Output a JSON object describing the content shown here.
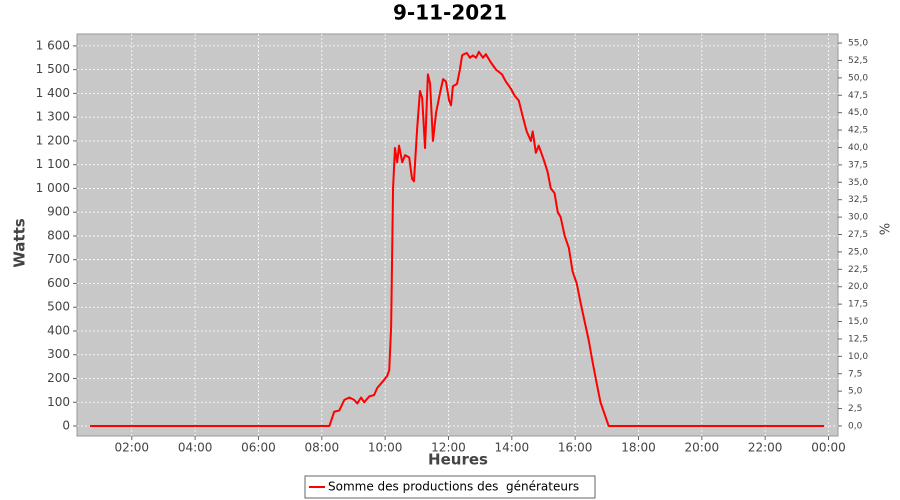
{
  "chart_data": {
    "type": "line",
    "title": "9-11-2021",
    "xlabel": "Heures",
    "ylabel": "Watts",
    "y2label": "%",
    "grid": true,
    "legend": "bottom",
    "xlim": [
      0.27,
      24.3
    ],
    "xticks": [
      {
        "value": 2,
        "label": "02:00"
      },
      {
        "value": 4,
        "label": "04:00"
      },
      {
        "value": 6,
        "label": "06:00"
      },
      {
        "value": 8,
        "label": "08:00"
      },
      {
        "value": 10,
        "label": "10:00"
      },
      {
        "value": 12,
        "label": "12:00"
      },
      {
        "value": 14,
        "label": "14:00"
      },
      {
        "value": 16,
        "label": "16:00"
      },
      {
        "value": 18,
        "label": "18:00"
      },
      {
        "value": 20,
        "label": "20:00"
      },
      {
        "value": 22,
        "label": "22:00"
      },
      {
        "value": 24,
        "label": "00:00"
      }
    ],
    "ylim": [
      -42,
      1650
    ],
    "yticks": [
      0,
      100,
      200,
      300,
      400,
      500,
      600,
      700,
      800,
      900,
      {
        "value": 1000,
        "label": "1 000"
      },
      {
        "value": 1100,
        "label": "1 100"
      },
      {
        "value": 1200,
        "label": "1 200"
      },
      {
        "value": 1300,
        "label": "1 300"
      },
      {
        "value": 1400,
        "label": "1 400"
      },
      {
        "value": 1500,
        "label": "1 500"
      },
      {
        "value": 1600,
        "label": "1 600"
      }
    ],
    "y2lim": [
      -1.44,
      56.3
    ],
    "y2ticks": [
      {
        "value": 0,
        "label": "0,0"
      },
      {
        "value": 2.5,
        "label": "2,5"
      },
      {
        "value": 5,
        "label": "5,0"
      },
      {
        "value": 7.5,
        "label": "7,5"
      },
      {
        "value": 10,
        "label": "10,0"
      },
      {
        "value": 12.5,
        "label": "12,5"
      },
      {
        "value": 15,
        "label": "15,0"
      },
      {
        "value": 17.5,
        "label": "17,5"
      },
      {
        "value": 20,
        "label": "20,0"
      },
      {
        "value": 22.5,
        "label": "22,5"
      },
      {
        "value": 25,
        "label": "25,0"
      },
      {
        "value": 27.5,
        "label": "27,5"
      },
      {
        "value": 30,
        "label": "30,0"
      },
      {
        "value": 32.5,
        "label": "32,5"
      },
      {
        "value": 35,
        "label": "35,0"
      },
      {
        "value": 37.5,
        "label": "37,5"
      },
      {
        "value": 40,
        "label": "40,0"
      },
      {
        "value": 42.5,
        "label": "42,5"
      },
      {
        "value": 45,
        "label": "45,0"
      },
      {
        "value": 47.5,
        "label": "47,5"
      },
      {
        "value": 50,
        "label": "50,0"
      },
      {
        "value": 52.5,
        "label": "52,5"
      },
      {
        "value": 55,
        "label": "55,0"
      }
    ],
    "x": [
      0.68,
      8.24,
      8.39,
      8.55,
      8.71,
      8.87,
      9.02,
      9.12,
      9.24,
      9.34,
      9.5,
      9.65,
      9.75,
      9.91,
      10.06,
      10.13,
      10.19,
      10.25,
      10.31,
      10.38,
      10.44,
      10.54,
      10.63,
      10.76,
      10.85,
      10.91,
      11.01,
      11.1,
      11.17,
      11.26,
      11.35,
      11.42,
      11.51,
      11.61,
      11.73,
      11.83,
      11.92,
      12.02,
      12.08,
      12.14,
      12.27,
      12.36,
      12.43,
      12.49,
      12.58,
      12.68,
      12.77,
      12.87,
      12.96,
      13.09,
      13.18,
      13.34,
      13.5,
      13.69,
      13.81,
      13.97,
      14.09,
      14.22,
      14.35,
      14.47,
      14.6,
      14.66,
      14.76,
      14.85,
      15.01,
      15.13,
      15.23,
      15.35,
      15.45,
      15.54,
      15.67,
      15.8,
      15.92,
      16.05,
      16.17,
      16.3,
      16.43,
      16.55,
      16.68,
      16.8,
      16.93,
      17.06,
      23.86
    ],
    "series": [
      {
        "name": "Somme des productions des  générateurs",
        "color": "#ff0000",
        "values": [
          0,
          0,
          60,
          65,
          110,
          120,
          110,
          95,
          120,
          100,
          125,
          130,
          160,
          185,
          210,
          235,
          420,
          1000,
          1170,
          1110,
          1180,
          1110,
          1140,
          1130,
          1040,
          1030,
          1250,
          1410,
          1380,
          1170,
          1480,
          1440,
          1200,
          1320,
          1400,
          1460,
          1450,
          1370,
          1350,
          1430,
          1440,
          1500,
          1560,
          1565,
          1570,
          1550,
          1560,
          1550,
          1575,
          1550,
          1565,
          1530,
          1500,
          1480,
          1450,
          1420,
          1390,
          1370,
          1300,
          1240,
          1200,
          1240,
          1150,
          1180,
          1120,
          1070,
          1000,
          980,
          900,
          880,
          800,
          750,
          650,
          600,
          520,
          440,
          360,
          270,
          180,
          100,
          50,
          0,
          0
        ]
      }
    ]
  }
}
